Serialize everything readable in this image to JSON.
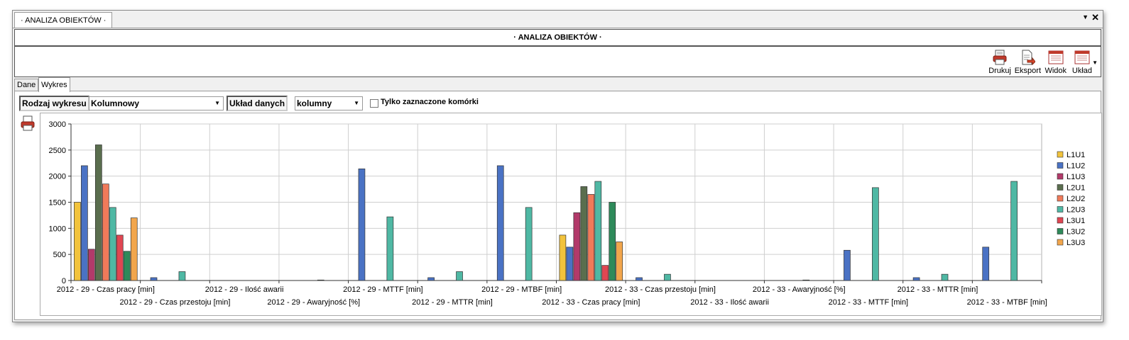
{
  "window": {
    "doc_tab": "· ANALIZA OBIEKTÓW ·",
    "title": "· ANALIZA OBIEKTÓW ·",
    "pin_icon": "triangle-down-icon",
    "close_label": "✕"
  },
  "toolbar": {
    "buttons": [
      {
        "label": "Drukuj",
        "icon": "printer-icon"
      },
      {
        "label": "Eksport",
        "icon": "export-icon"
      },
      {
        "label": "Widok",
        "icon": "view-icon"
      },
      {
        "label": "Układ",
        "icon": "layout-icon"
      }
    ]
  },
  "tabs": [
    {
      "label": "Dane",
      "active": false
    },
    {
      "label": "Wykres",
      "active": true
    }
  ],
  "controls": {
    "chart_type_label": "Rodzaj wykresu",
    "chart_type_value": "Kolumnowy",
    "data_layout_label": "Układ danych",
    "data_layout_value": "kolumny",
    "selected_only_label": "Tylko zaznaczone komórki",
    "selected_only_checked": false
  },
  "colors": {
    "L1U1": "#f2c33c",
    "L1U2": "#4a72c4",
    "L1U3": "#b23a6a",
    "L2U1": "#5a6e4e",
    "L2U2": "#f07a5a",
    "L2U3": "#4fb8a4",
    "L3U1": "#e04652",
    "L3U2": "#2e8a5a",
    "L3U3": "#f2a64c"
  },
  "chart_data": {
    "type": "bar",
    "ylim": [
      0,
      3000
    ],
    "yticks": [
      0,
      500,
      1000,
      1500,
      2000,
      2500,
      3000
    ],
    "grid": true,
    "legend_position": "right",
    "categories": [
      "2012 - 29 - Czas pracy [min]",
      "2012 - 29 - Czas przestoju [min]",
      "2012 - 29 - Ilość awarii",
      "2012 - 29 - Awaryjność [%]",
      "2012 - 29 - MTTF [min]",
      "2012 - 29 - MTTR [min]",
      "2012 - 29 - MTBF [min]",
      "2012 - 33 - Czas pracy [min]",
      "2012 - 33 - Czas przestoju [min]",
      "2012 - 33 - Ilość awarii",
      "2012 - 33 - Awaryjność [%]",
      "2012 - 33 - MTTF [min]",
      "2012 - 33 - MTTR [min]",
      "2012 - 33 - MTBF [min]"
    ],
    "series": [
      {
        "name": "L1U1",
        "values": [
          1500,
          0,
          0,
          0,
          0,
          0,
          0,
          870,
          0,
          0,
          0,
          0,
          0,
          0
        ]
      },
      {
        "name": "L1U2",
        "values": [
          2200,
          55,
          0,
          0,
          2140,
          55,
          2200,
          640,
          55,
          0,
          0,
          580,
          55,
          640
        ]
      },
      {
        "name": "L1U3",
        "values": [
          600,
          0,
          0,
          0,
          0,
          0,
          0,
          1300,
          0,
          0,
          0,
          0,
          0,
          0
        ]
      },
      {
        "name": "L2U1",
        "values": [
          2600,
          0,
          0,
          0,
          0,
          0,
          0,
          1800,
          0,
          0,
          0,
          0,
          0,
          0
        ]
      },
      {
        "name": "L2U2",
        "values": [
          1850,
          0,
          0,
          0,
          0,
          0,
          0,
          1650,
          0,
          0,
          0,
          0,
          0,
          0
        ]
      },
      {
        "name": "L2U3",
        "values": [
          1400,
          170,
          0,
          10,
          1220,
          170,
          1400,
          1900,
          120,
          0,
          10,
          1780,
          120,
          1900
        ]
      },
      {
        "name": "L3U1",
        "values": [
          870,
          0,
          0,
          0,
          0,
          0,
          0,
          290,
          0,
          0,
          0,
          0,
          0,
          0
        ]
      },
      {
        "name": "L3U2",
        "values": [
          560,
          0,
          0,
          0,
          0,
          0,
          0,
          1500,
          0,
          0,
          0,
          0,
          0,
          0
        ]
      },
      {
        "name": "L3U3",
        "values": [
          1200,
          0,
          0,
          0,
          0,
          0,
          0,
          740,
          0,
          0,
          0,
          0,
          0,
          0
        ]
      }
    ]
  }
}
